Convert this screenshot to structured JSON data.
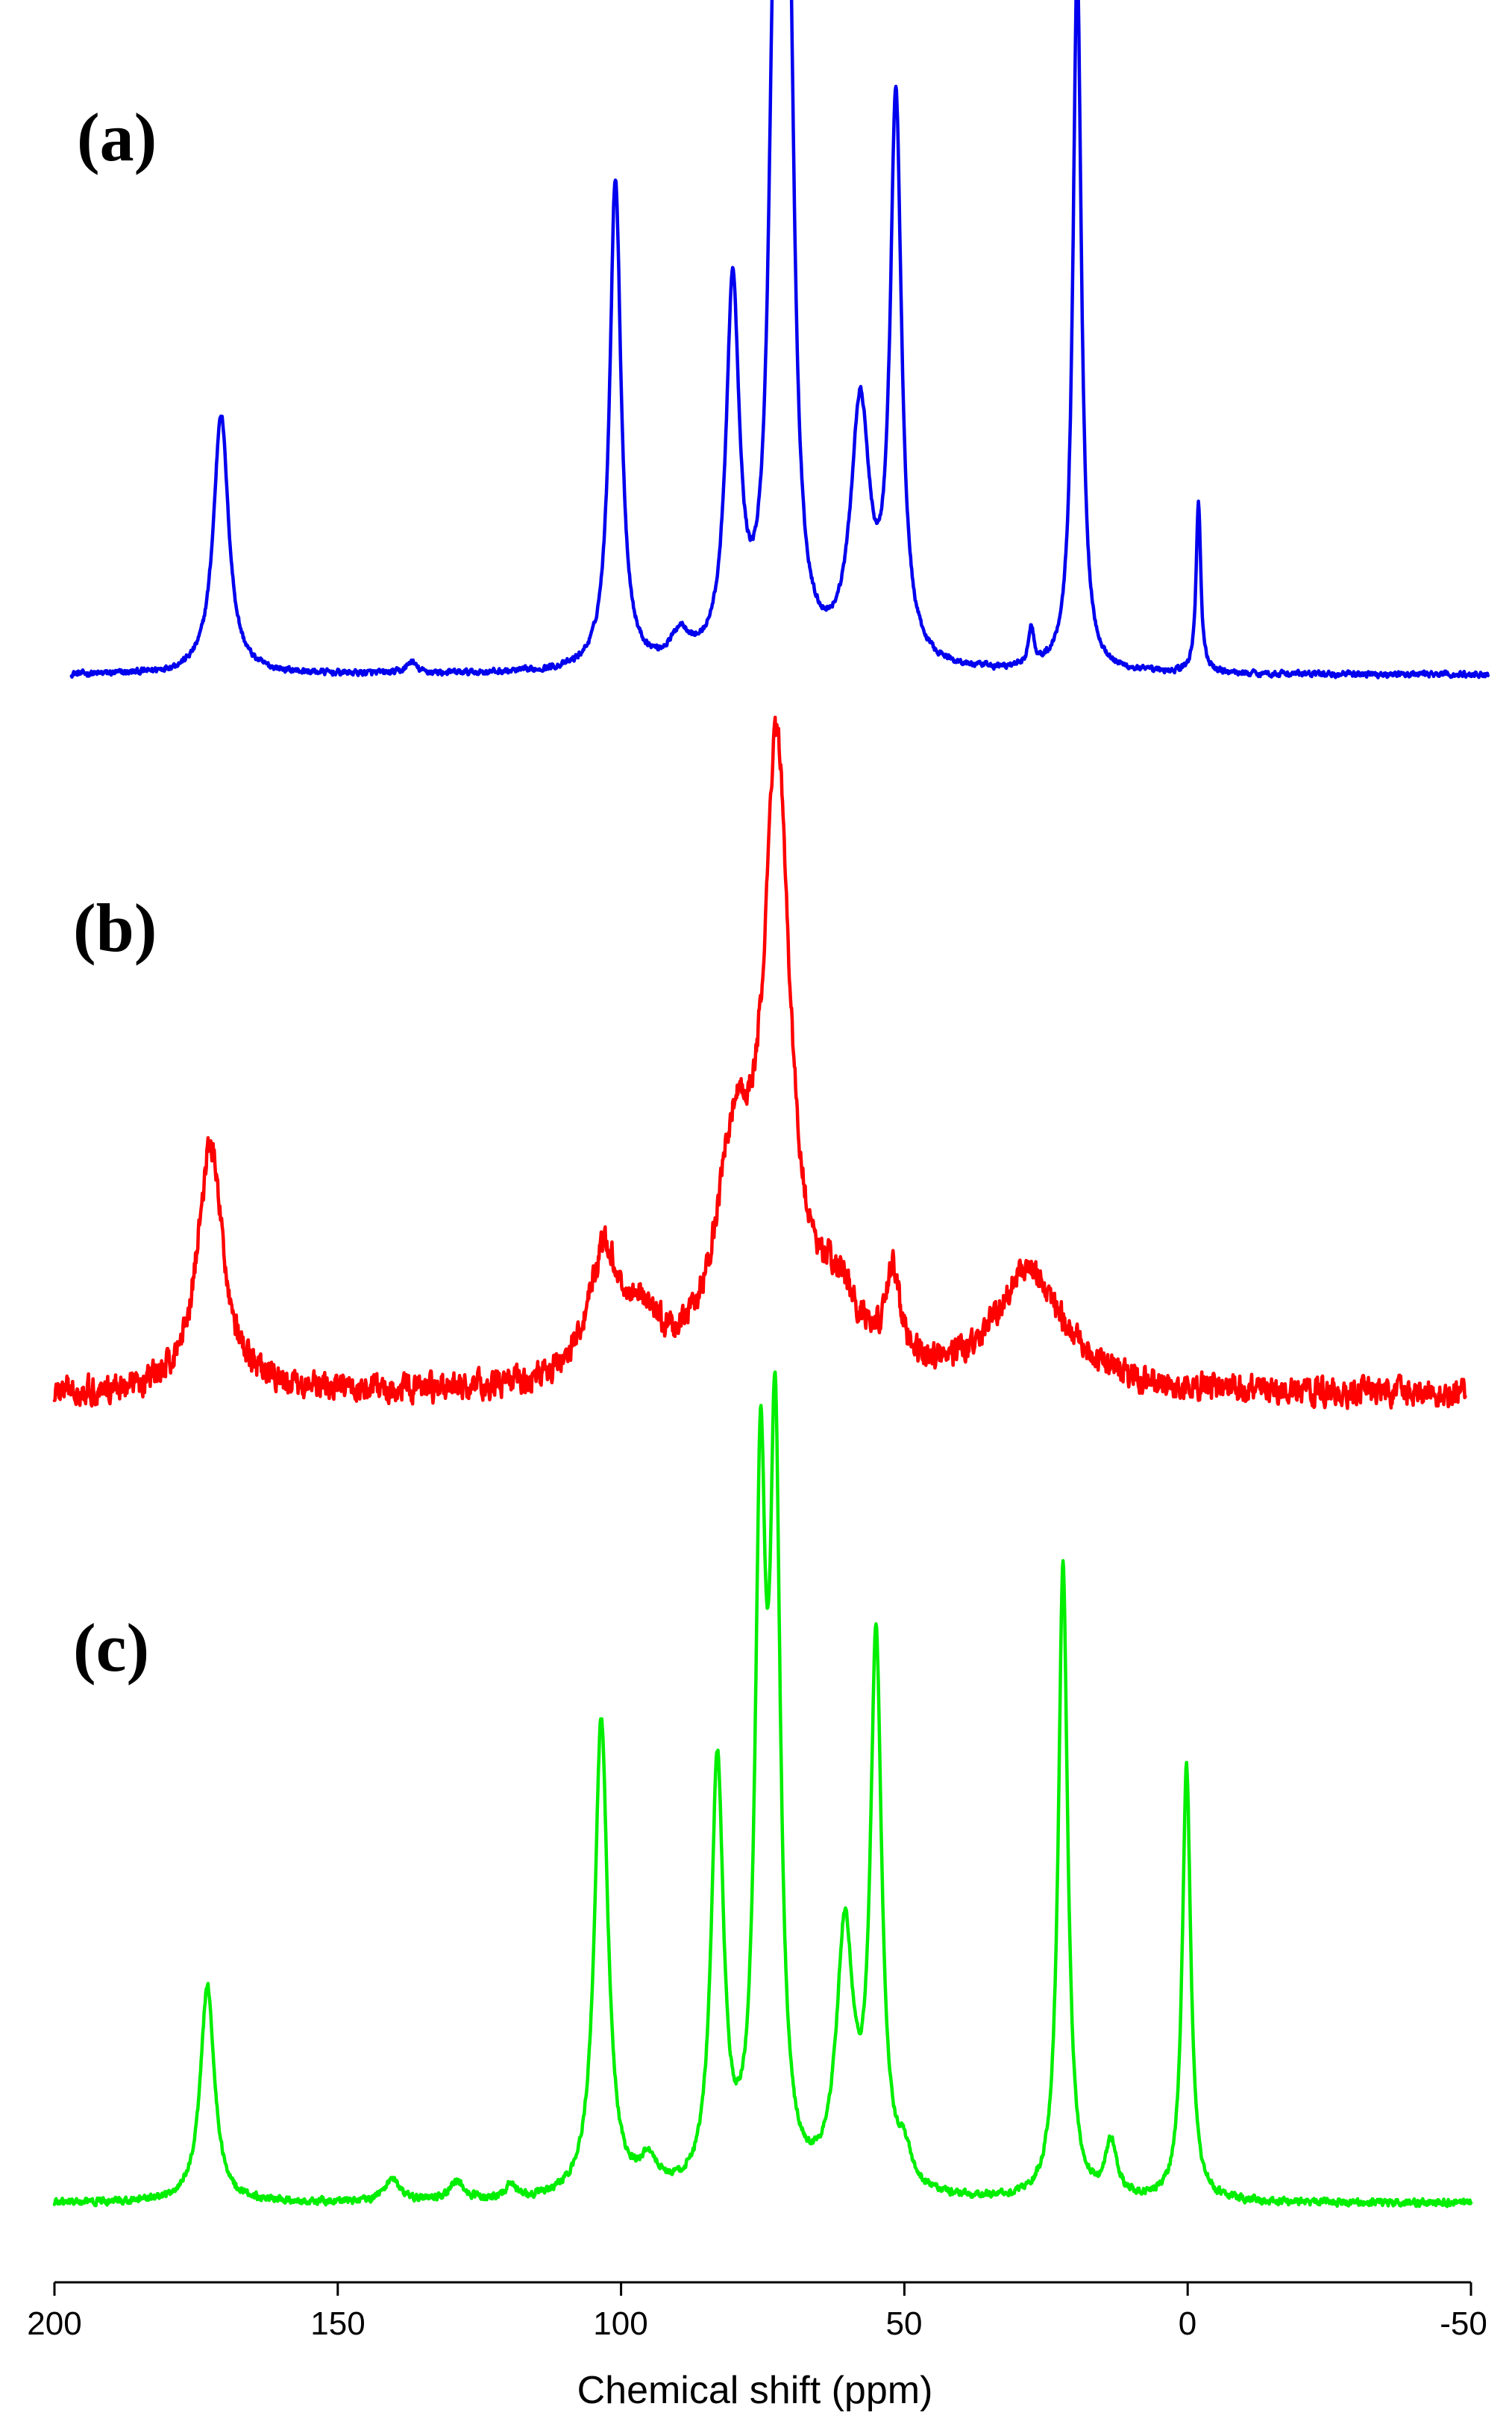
{
  "chart_data": {
    "type": "line",
    "x_axis": {
      "label": "Chemical shift (ppm)",
      "range": [
        200,
        -50
      ],
      "reversed": true,
      "ticks": [
        200,
        150,
        100,
        50,
        0,
        -50
      ],
      "tick_labels": [
        "200",
        "150",
        "100",
        "50",
        "0",
        "-50"
      ]
    },
    "y_axis": {
      "label": "",
      "ticks_shown": false,
      "range": [
        0,
        1
      ]
    },
    "grid": false,
    "legend": "none",
    "series": [
      {
        "label": "(a)",
        "color": "#0000ee",
        "x_start": 197,
        "x_end": -53,
        "baseline": 0.03,
        "noise": 0.006,
        "peaks": [
          {
            "x": 170.6,
            "height": 0.35,
            "width": 1.6
          },
          {
            "x": 137,
            "height": 0.015,
            "width": 1.0
          },
          {
            "x": 101.0,
            "height": 0.66,
            "width": 1.2
          },
          {
            "x": 89.5,
            "height": 0.04,
            "width": 2.0
          },
          {
            "x": 80.3,
            "height": 0.5,
            "width": 1.4
          },
          {
            "x": 72.9,
            "height": 0.85,
            "width": 1.2
          },
          {
            "x": 70.5,
            "height": 0.95,
            "width": 1.2
          },
          {
            "x": 57.8,
            "height": 0.34,
            "width": 2.0
          },
          {
            "x": 51.5,
            "height": 0.75,
            "width": 1.2
          },
          {
            "x": 27.6,
            "height": 0.05,
            "width": 0.6
          },
          {
            "x": 19.5,
            "height": 0.95,
            "width": 0.9
          },
          {
            "x": -1.9,
            "height": 0.23,
            "width": 0.5
          }
        ]
      },
      {
        "label": "(b)",
        "color": "#ff0000",
        "x_start": 200,
        "x_end": -49,
        "baseline": 0.06,
        "noise": 0.028,
        "peaks": [
          {
            "x": 172.5,
            "height": 0.33,
            "width": 2.8
          },
          {
            "x": 103,
            "height": 0.17,
            "width": 3.5
          },
          {
            "x": 96,
            "height": 0.07,
            "width": 3.5
          },
          {
            "x": 80,
            "height": 0.28,
            "width": 4.0
          },
          {
            "x": 72.5,
            "height": 0.8,
            "width": 2.8
          },
          {
            "x": 62,
            "height": 0.1,
            "width": 5.0
          },
          {
            "x": 52,
            "height": 0.12,
            "width": 1.5
          },
          {
            "x": 28,
            "height": 0.16,
            "width": 7.5
          }
        ]
      },
      {
        "label": "(c)",
        "color": "#00ee00",
        "x_start": 200,
        "x_end": -50,
        "baseline": 0.02,
        "noise": 0.007,
        "peaks": [
          {
            "x": 173.0,
            "height": 0.28,
            "width": 1.5
          },
          {
            "x": 140.5,
            "height": 0.03,
            "width": 1.5
          },
          {
            "x": 129,
            "height": 0.025,
            "width": 1.5
          },
          {
            "x": 119.5,
            "height": 0.02,
            "width": 1.0
          },
          {
            "x": 103.5,
            "height": 0.62,
            "width": 1.4
          },
          {
            "x": 95,
            "height": 0.04,
            "width": 2.0
          },
          {
            "x": 83.0,
            "height": 0.55,
            "width": 1.3
          },
          {
            "x": 75.4,
            "height": 0.86,
            "width": 1.1
          },
          {
            "x": 72.8,
            "height": 0.92,
            "width": 1.1
          },
          {
            "x": 60.5,
            "height": 0.33,
            "width": 1.8
          },
          {
            "x": 55.0,
            "height": 0.7,
            "width": 1.2
          },
          {
            "x": 50,
            "height": 0.04,
            "width": 1.5
          },
          {
            "x": 22.0,
            "height": 0.82,
            "width": 1.0
          },
          {
            "x": 13.5,
            "height": 0.07,
            "width": 1.2
          },
          {
            "x": 0.2,
            "height": 0.56,
            "width": 0.9
          }
        ]
      }
    ]
  }
}
